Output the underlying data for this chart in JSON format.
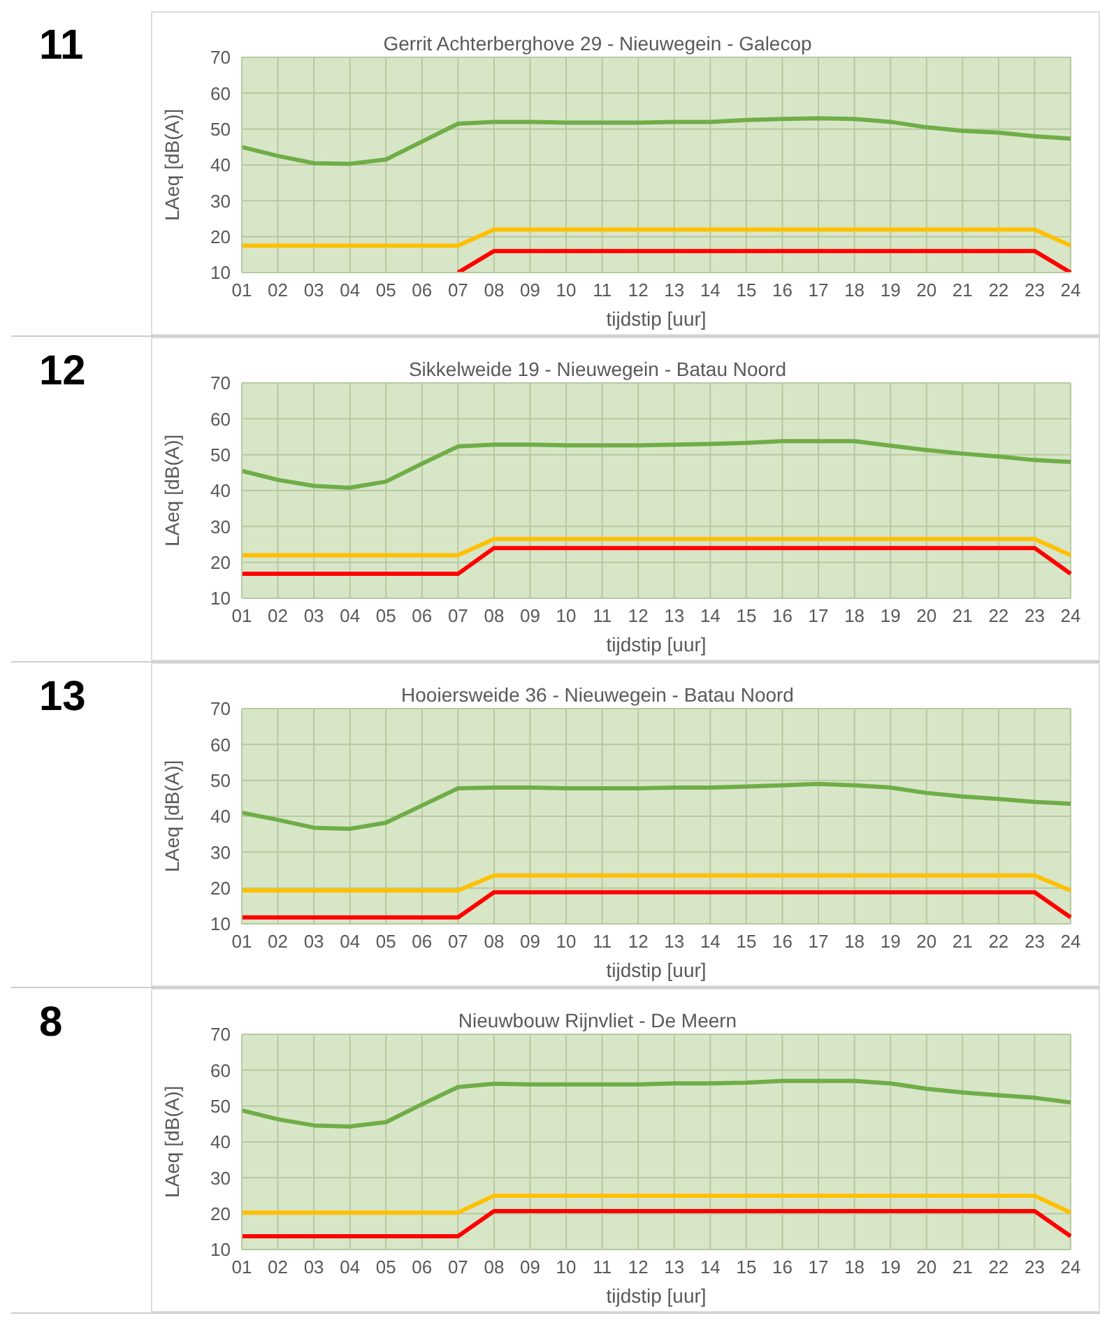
{
  "chart_data": [
    {
      "type": "line",
      "title": "Gerrit Achterberghove  29 - Nieuwegein - Galecop",
      "annotations": [
        "11"
      ],
      "xlabel": "tijdstip [uur]",
      "ylabel": "LAeq [dB(A)]",
      "categories": [
        "01",
        "02",
        "03",
        "04",
        "05",
        "06",
        "07",
        "08",
        "09",
        "10",
        "11",
        "12",
        "13",
        "14",
        "15",
        "16",
        "17",
        "18",
        "19",
        "20",
        "21",
        "22",
        "23",
        "24"
      ],
      "ylim": [
        10,
        70
      ],
      "yticks": [
        10,
        20,
        30,
        40,
        50,
        60,
        70
      ],
      "grid": true,
      "legend": false,
      "marker": "none",
      "series": [
        {
          "color": "#70ad47",
          "values": [
            45,
            42.5,
            40.5,
            40.3,
            41.5,
            46.5,
            51.5,
            52,
            52,
            51.8,
            51.8,
            51.8,
            52,
            52,
            52.5,
            52.8,
            53,
            52.8,
            52,
            50.5,
            49.5,
            49,
            48,
            47.3
          ]
        },
        {
          "color": "#ffc000",
          "values": [
            17.5,
            17.5,
            17.5,
            17.5,
            17.5,
            17.5,
            17.5,
            22,
            22,
            22,
            22,
            22,
            22,
            22,
            22,
            22,
            22,
            22,
            22,
            22,
            22,
            22,
            22,
            17.5
          ]
        },
        {
          "color": "#ff0000",
          "values": [
            null,
            null,
            null,
            null,
            null,
            null,
            10,
            16,
            16,
            16,
            16,
            16,
            16,
            16,
            16,
            16,
            16,
            16,
            16,
            16,
            16,
            16,
            16,
            10
          ]
        }
      ]
    },
    {
      "type": "line",
      "title": "Sikkelweide 19  - Nieuwegein - Batau Noord",
      "annotations": [
        "12"
      ],
      "xlabel": "tijdstip [uur]",
      "ylabel": "LAeq [dB(A)]",
      "categories": [
        "01",
        "02",
        "03",
        "04",
        "05",
        "06",
        "07",
        "08",
        "09",
        "10",
        "11",
        "12",
        "13",
        "14",
        "15",
        "16",
        "17",
        "18",
        "19",
        "20",
        "21",
        "22",
        "23",
        "24"
      ],
      "ylim": [
        10,
        70
      ],
      "yticks": [
        10,
        20,
        30,
        40,
        50,
        60,
        70
      ],
      "grid": true,
      "legend": false,
      "marker": "none",
      "series": [
        {
          "color": "#70ad47",
          "values": [
            45.5,
            43,
            41.3,
            40.8,
            42.5,
            47.5,
            52.3,
            52.8,
            52.8,
            52.6,
            52.6,
            52.6,
            52.8,
            53,
            53.3,
            53.8,
            53.8,
            53.8,
            52.5,
            51.3,
            50.3,
            49.5,
            48.5,
            48
          ]
        },
        {
          "color": "#ffc000",
          "values": [
            22,
            22,
            22,
            22,
            22,
            22,
            22,
            26.5,
            26.5,
            26.5,
            26.5,
            26.5,
            26.5,
            26.5,
            26.5,
            26.5,
            26.5,
            26.5,
            26.5,
            26.5,
            26.5,
            26.5,
            26.5,
            22
          ]
        },
        {
          "color": "#ff0000",
          "values": [
            16.8,
            16.8,
            16.8,
            16.8,
            16.8,
            16.8,
            16.8,
            24,
            24,
            24,
            24,
            24,
            24,
            24,
            24,
            24,
            24,
            24,
            24,
            24,
            24,
            24,
            24,
            16.8
          ]
        }
      ]
    },
    {
      "type": "line",
      "title": "Hooiersweide 36 - Nieuwegein - Batau Noord",
      "annotations": [
        "13"
      ],
      "xlabel": "tijdstip [uur]",
      "ylabel": "LAeq [dB(A)]",
      "categories": [
        "01",
        "02",
        "03",
        "04",
        "05",
        "06",
        "07",
        "08",
        "09",
        "10",
        "11",
        "12",
        "13",
        "14",
        "15",
        "16",
        "17",
        "18",
        "19",
        "20",
        "21",
        "22",
        "23",
        "24"
      ],
      "ylim": [
        10,
        70
      ],
      "yticks": [
        10,
        20,
        30,
        40,
        50,
        60,
        70
      ],
      "grid": true,
      "legend": false,
      "marker": "none",
      "series": [
        {
          "color": "#70ad47",
          "values": [
            41,
            39,
            36.8,
            36.5,
            38.2,
            43,
            47.8,
            48,
            48,
            47.8,
            47.8,
            47.8,
            48,
            48,
            48.3,
            48.6,
            49,
            48.6,
            48,
            46.5,
            45.5,
            44.8,
            44,
            43.5
          ]
        },
        {
          "color": "#ffc000",
          "values": [
            19.3,
            19.3,
            19.3,
            19.3,
            19.3,
            19.3,
            19.3,
            23.5,
            23.5,
            23.5,
            23.5,
            23.5,
            23.5,
            23.5,
            23.5,
            23.5,
            23.5,
            23.5,
            23.5,
            23.5,
            23.5,
            23.5,
            23.5,
            19.3
          ]
        },
        {
          "color": "#ff0000",
          "values": [
            11.8,
            11.8,
            11.8,
            11.8,
            11.8,
            11.8,
            11.8,
            18.8,
            18.8,
            18.8,
            18.8,
            18.8,
            18.8,
            18.8,
            18.8,
            18.8,
            18.8,
            18.8,
            18.8,
            18.8,
            18.8,
            18.8,
            18.8,
            11.8
          ]
        }
      ]
    },
    {
      "type": "line",
      "title": "Nieuwbouw Rijnvliet  - De Meern",
      "annotations": [
        "8"
      ],
      "xlabel": "tijdstip [uur]",
      "ylabel": "LAeq [dB(A)]",
      "categories": [
        "01",
        "02",
        "03",
        "04",
        "05",
        "06",
        "07",
        "08",
        "09",
        "10",
        "11",
        "12",
        "13",
        "14",
        "15",
        "16",
        "17",
        "18",
        "19",
        "20",
        "21",
        "22",
        "23",
        "24"
      ],
      "ylim": [
        10,
        70
      ],
      "yticks": [
        10,
        20,
        30,
        40,
        50,
        60,
        70
      ],
      "grid": true,
      "legend": false,
      "marker": "none",
      "series": [
        {
          "color": "#70ad47",
          "values": [
            48.8,
            46.3,
            44.6,
            44.3,
            45.5,
            50.5,
            55.3,
            56.2,
            56,
            56,
            56,
            56,
            56.3,
            56.3,
            56.5,
            57,
            57,
            57,
            56.3,
            54.8,
            53.8,
            53,
            52.3,
            51
          ]
        },
        {
          "color": "#ffc000",
          "values": [
            20.3,
            20.3,
            20.3,
            20.3,
            20.3,
            20.3,
            20.3,
            25,
            25,
            25,
            25,
            25,
            25,
            25,
            25,
            25,
            25,
            25,
            25,
            25,
            25,
            25,
            25,
            20.3
          ]
        },
        {
          "color": "#ff0000",
          "values": [
            13.7,
            13.7,
            13.7,
            13.7,
            13.7,
            13.7,
            13.7,
            20.7,
            20.7,
            20.7,
            20.7,
            20.7,
            20.7,
            20.7,
            20.7,
            20.7,
            20.7,
            20.7,
            20.7,
            20.7,
            20.7,
            20.7,
            20.7,
            13.7
          ]
        }
      ]
    }
  ]
}
